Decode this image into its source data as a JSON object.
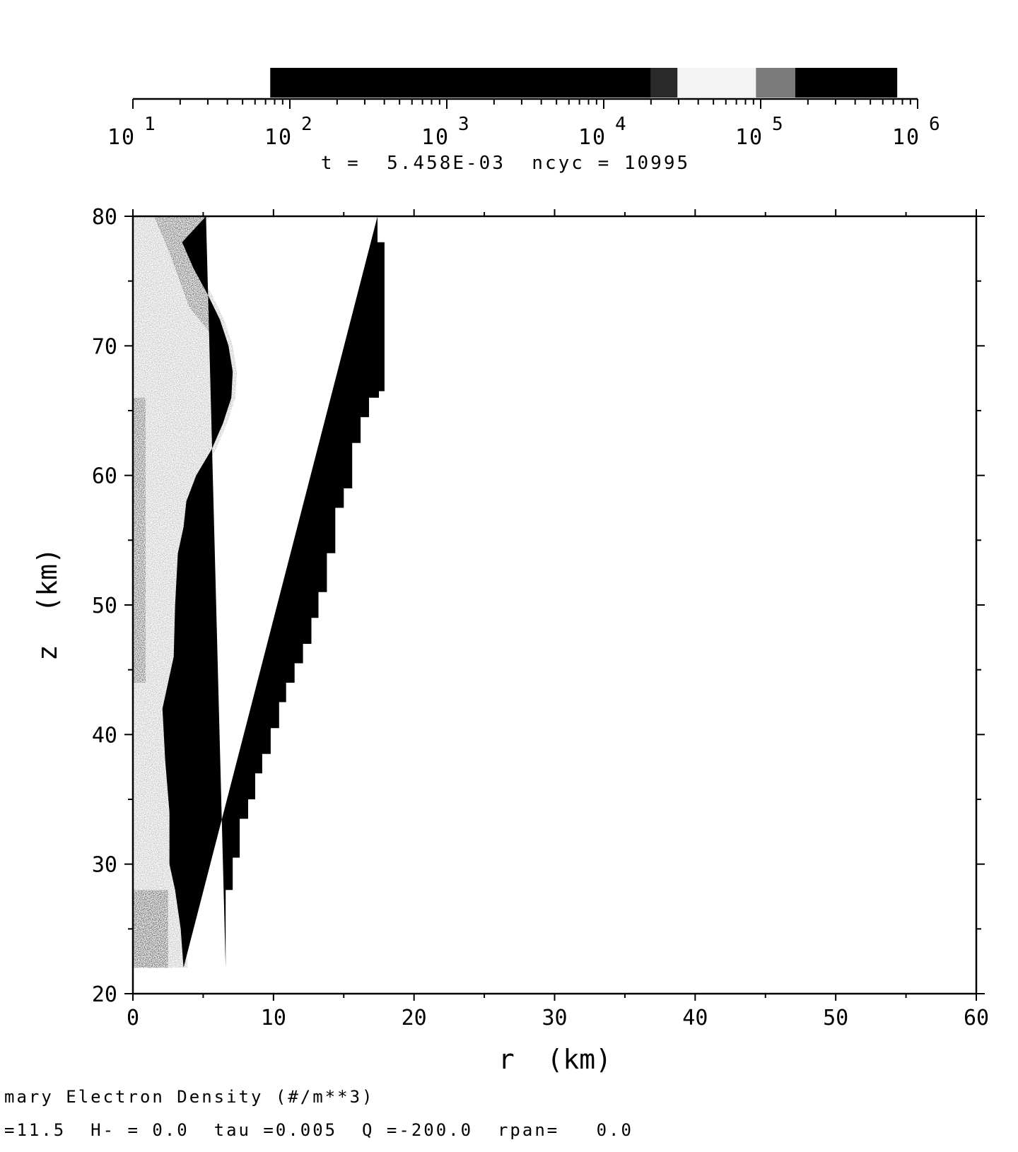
{
  "colorbar": {
    "tick_labels": [
      "10",
      "10",
      "10",
      "10",
      "10",
      "10"
    ],
    "tick_exponents": [
      "1",
      "2",
      "3",
      "4",
      "5",
      "6"
    ],
    "log_min": 1,
    "log_max": 6,
    "segments": [
      {
        "from": 1.875,
        "to": 4.3,
        "color": "#000000"
      },
      {
        "from": 4.3,
        "to": 4.47,
        "color": "#2a2a2a"
      },
      {
        "from": 4.47,
        "to": 4.97,
        "color": "#f3f3f3"
      },
      {
        "from": 4.97,
        "to": 5.22,
        "color": "#7a7a7a"
      },
      {
        "from": 5.22,
        "to": 5.87,
        "color": "#000000"
      }
    ]
  },
  "run_info": "t =  5.458E-03  ncyc = 10995",
  "chart_data": {
    "type": "heatmap",
    "title": "",
    "xlabel": "r  (km)",
    "ylabel": "z  (km)",
    "xlim": [
      0,
      60
    ],
    "ylim": [
      20,
      80
    ],
    "x_ticks": [
      "0",
      "10",
      "20",
      "30",
      "40",
      "50",
      "60"
    ],
    "y_ticks": [
      "20",
      "30",
      "40",
      "50",
      "60",
      "70",
      "80"
    ],
    "regions": {
      "dense_core_outer_edge": [
        {
          "z": 22,
          "r": 6.6
        },
        {
          "z": 28,
          "r": 6.6
        },
        {
          "z": 28,
          "r": 7.1
        },
        {
          "z": 30.5,
          "r": 7.1
        },
        {
          "z": 30.5,
          "r": 7.6
        },
        {
          "z": 33.5,
          "r": 7.6
        },
        {
          "z": 33.5,
          "r": 8.2
        },
        {
          "z": 35,
          "r": 8.2
        },
        {
          "z": 35,
          "r": 8.7
        },
        {
          "z": 37,
          "r": 8.7
        },
        {
          "z": 37,
          "r": 9.2
        },
        {
          "z": 38.5,
          "r": 9.2
        },
        {
          "z": 38.5,
          "r": 9.8
        },
        {
          "z": 40.5,
          "r": 9.8
        },
        {
          "z": 40.5,
          "r": 10.4
        },
        {
          "z": 42.5,
          "r": 10.4
        },
        {
          "z": 42.5,
          "r": 10.9
        },
        {
          "z": 44,
          "r": 10.9
        },
        {
          "z": 44,
          "r": 11.5
        },
        {
          "z": 45.5,
          "r": 11.5
        },
        {
          "z": 45.5,
          "r": 12.1
        },
        {
          "z": 47,
          "r": 12.1
        },
        {
          "z": 47,
          "r": 12.7
        },
        {
          "z": 49,
          "r": 12.7
        },
        {
          "z": 49,
          "r": 13.2
        },
        {
          "z": 51,
          "r": 13.2
        },
        {
          "z": 51,
          "r": 13.8
        },
        {
          "z": 54,
          "r": 13.8
        },
        {
          "z": 54,
          "r": 14.4
        },
        {
          "z": 57.5,
          "r": 14.4
        },
        {
          "z": 57.5,
          "r": 15.0
        },
        {
          "z": 59,
          "r": 15.0
        },
        {
          "z": 59,
          "r": 15.6
        },
        {
          "z": 62.5,
          "r": 15.6
        },
        {
          "z": 62.5,
          "r": 16.2
        },
        {
          "z": 64.5,
          "r": 16.2
        },
        {
          "z": 64.5,
          "r": 16.8
        },
        {
          "z": 66,
          "r": 16.8
        },
        {
          "z": 66,
          "r": 17.5
        },
        {
          "z": 66.5,
          "r": 17.5
        },
        {
          "z": 66.5,
          "r": 17.9
        },
        {
          "z": 78,
          "r": 17.9
        },
        {
          "z": 78,
          "r": 17.4
        },
        {
          "z": 80,
          "r": 17.4
        }
      ],
      "dense_core_inner_edge": [
        {
          "z": 80,
          "r": 5.2
        },
        {
          "z": 78,
          "r": 3.5
        },
        {
          "z": 76,
          "r": 4.3
        },
        {
          "z": 74,
          "r": 5.3
        },
        {
          "z": 72,
          "r": 6.2
        },
        {
          "z": 70,
          "r": 6.8
        },
        {
          "z": 68,
          "r": 7.1
        },
        {
          "z": 66,
          "r": 7.0
        },
        {
          "z": 64,
          "r": 6.4
        },
        {
          "z": 62,
          "r": 5.6
        },
        {
          "z": 60,
          "r": 4.5
        },
        {
          "z": 58,
          "r": 3.8
        },
        {
          "z": 56,
          "r": 3.6
        },
        {
          "z": 54,
          "r": 3.2
        },
        {
          "z": 50,
          "r": 3.0
        },
        {
          "z": 46,
          "r": 2.9
        },
        {
          "z": 42,
          "r": 2.1
        },
        {
          "z": 38,
          "r": 2.3
        },
        {
          "z": 34,
          "r": 2.6
        },
        {
          "z": 30,
          "r": 2.6
        },
        {
          "z": 28,
          "r": 3.0
        },
        {
          "z": 25,
          "r": 3.4
        },
        {
          "z": 22,
          "r": 3.6
        }
      ],
      "gray_halo_inner_edge": [
        {
          "z": 80,
          "r": 1.5
        },
        {
          "z": 78,
          "r": 2.3
        },
        {
          "z": 76,
          "r": 3.0
        },
        {
          "z": 73,
          "r": 4.0
        },
        {
          "z": 71,
          "r": 5.5
        },
        {
          "z": 69,
          "r": 6.3
        },
        {
          "z": 67,
          "r": 7.0
        },
        {
          "z": 65,
          "r": 6.9
        }
      ]
    }
  },
  "footer": {
    "line1": "mary Electron Density (#/m**3)",
    "line2": "=11.5  H- = 0.0  tau =0.005  Q =-200.0  rpan=   0.0"
  }
}
